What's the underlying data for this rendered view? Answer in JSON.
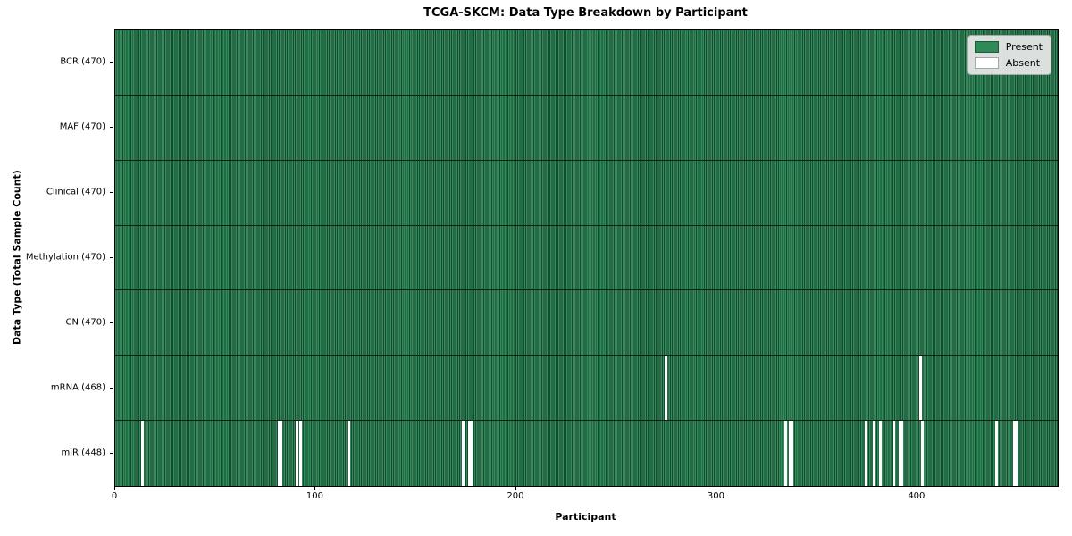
{
  "chart_data": {
    "type": "heatmap",
    "title": "TCGA-SKCM: Data Type Breakdown by Participant",
    "xlabel": "Participant",
    "ylabel": "Data Type (Total Sample Count)",
    "x_max": 470,
    "x_ticks": [
      0,
      100,
      200,
      300,
      400
    ],
    "legend_position": "upper right",
    "grid": false,
    "legend": [
      {
        "key": "present",
        "label": "Present",
        "color": "#2e8b57"
      },
      {
        "key": "absent",
        "label": "Absent",
        "color": "#ffffff"
      }
    ],
    "rows": [
      {
        "key": "bcr",
        "label": "BCR (470)",
        "data_type": "BCR",
        "total_samples": 470,
        "absent_participants": []
      },
      {
        "key": "maf",
        "label": "MAF (470)",
        "data_type": "MAF",
        "total_samples": 470,
        "absent_participants": []
      },
      {
        "key": "clinical",
        "label": "Clinical (470)",
        "data_type": "Clinical",
        "total_samples": 470,
        "absent_participants": []
      },
      {
        "key": "methylation",
        "label": "Methylation (470)",
        "data_type": "Methylation",
        "total_samples": 470,
        "absent_participants": []
      },
      {
        "key": "cn",
        "label": "CN (470)",
        "data_type": "CN",
        "total_samples": 470,
        "absent_participants": []
      },
      {
        "key": "mrna",
        "label": "mRNA (468)",
        "data_type": "mRNA",
        "total_samples": 468,
        "absent_participants": [
          274,
          401
        ]
      },
      {
        "key": "mir",
        "label": "miR (448)",
        "data_type": "miR",
        "total_samples": 448,
        "absent_participants": [
          13,
          81,
          82,
          90,
          92,
          116,
          173,
          176,
          177,
          334,
          336,
          337,
          374,
          378,
          381,
          388,
          391,
          392,
          402,
          439,
          448,
          449
        ]
      }
    ],
    "colors": {
      "present_fill": "#2f8d5c",
      "present_edge": "#1d4730",
      "absent_fill": "#ffffff",
      "row_divider": "#101f15",
      "plot_border": "#000000"
    }
  }
}
